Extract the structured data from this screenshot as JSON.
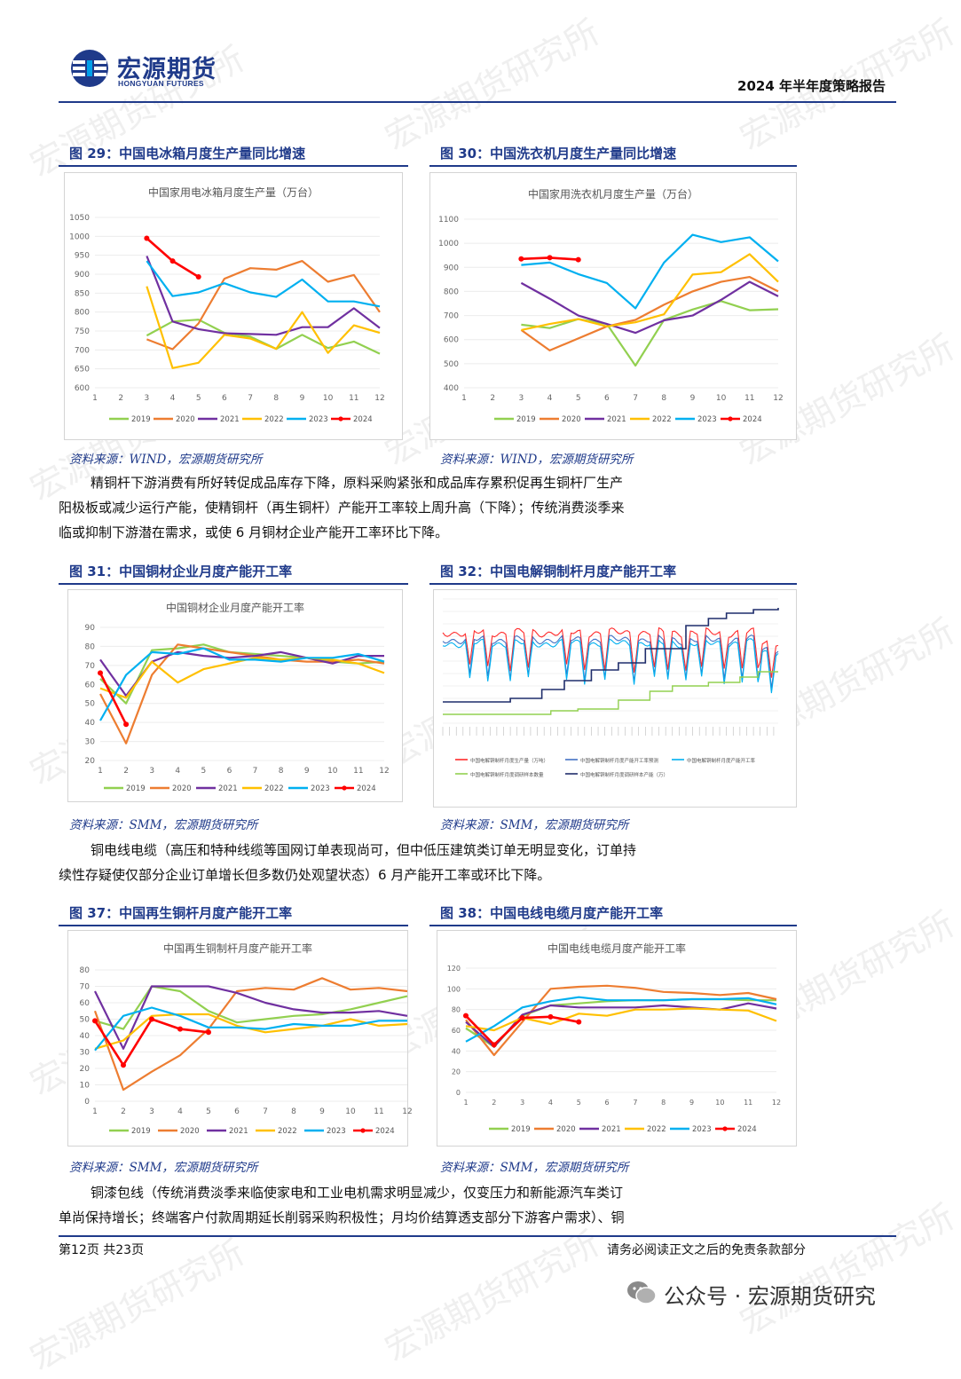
{
  "header": {
    "logo_cn": "宏源期货",
    "logo_en": "HONGYUAN FUTURES",
    "report_title": "2024 年半年度策略报告"
  },
  "watermark": "宏源期货研究所",
  "legend_years": [
    "2019",
    "2020",
    "2021",
    "2022",
    "2023",
    "2024"
  ],
  "colors": {
    "2019": "#92d050",
    "2020": "#ed7d31",
    "2021": "#7030a0",
    "2022": "#ffc000",
    "2023": "#00b0f0",
    "2024": "#ff0000",
    "brand": "#1f3a8a"
  },
  "figures": {
    "f29": {
      "title": "图 29：中国电冰箱月度生产量同比增速",
      "source": "资料来源：WIND，宏源期货研究所"
    },
    "f30": {
      "title": "图 30：中国洗衣机月度生产量同比增速",
      "source": "资料来源：WIND，宏源期货研究所"
    },
    "f31": {
      "title": "图 31：中国铜材企业月度产能开工率",
      "source": "资料来源：SMM，宏源期货研究所"
    },
    "f32": {
      "title": "图 32：中国电解铜制杆月度产能开工率",
      "source": "资料来源：SMM，宏源期货研究所"
    },
    "f37": {
      "title": "图 37：中国再生铜杆月度产能开工率",
      "source": "资料来源：SMM，宏源期货研究所"
    },
    "f38": {
      "title": "图 38：中国电线电缆月度产能开工率",
      "source": "资料来源：SMM，宏源期货研究所"
    }
  },
  "paragraphs": {
    "p1": [
      "精铜杆下游消费有所好转促成品库存下降，原料采购紧张和成品库存累积促再生铜杆厂生产",
      "阳极板或减少运行产能，使精铜杆（再生铜杆）产能开工率较上周升高（下降）；传统消费淡季来",
      "临或抑制下游潜在需求，或使 6 月铜材企业产能开工率环比下降。"
    ],
    "p2": [
      "铜电线电缆（高压和特种线缆等国网订单表现尚可，但中低压建筑类订单无明显变化，订单持",
      "续性存疑使仅部分企业订单增长但多数仍处观望状态）6 月产能开工率或环比下降。"
    ],
    "p3": [
      "铜漆包线（传统消费淡季来临使家电和工业电机需求明显减少，仅变压力和新能源汽车类订",
      "单尚保持增长；终端客户付款周期延长削弱采购积极性；月均价结算透支部分下游客户需求）、铜"
    ]
  },
  "footer": {
    "page": "第12页 共23页",
    "disclaimer": "请务必阅读正文之后的免责条款部分",
    "wechat": "公众号 · 宏源期货研究"
  },
  "chart_data": [
    {
      "id": "f29",
      "type": "line",
      "title": "中国家用电冰箱月度生产量（万台）",
      "x": [
        1,
        2,
        3,
        4,
        5,
        6,
        7,
        8,
        9,
        10,
        11,
        12
      ],
      "ylim": [
        600,
        1050
      ],
      "yticks": [
        600,
        650,
        700,
        750,
        800,
        850,
        900,
        950,
        1000,
        1050
      ],
      "series": [
        {
          "name": "2019",
          "values": [
            null,
            null,
            738,
            775,
            780,
            745,
            735,
            703,
            740,
            705,
            722,
            690
          ]
        },
        {
          "name": "2020",
          "values": [
            null,
            null,
            728,
            702,
            770,
            888,
            916,
            912,
            935,
            880,
            898,
            800
          ]
        },
        {
          "name": "2021",
          "values": [
            null,
            null,
            948,
            775,
            755,
            744,
            742,
            740,
            760,
            760,
            810,
            758
          ]
        },
        {
          "name": "2022",
          "values": [
            null,
            null,
            868,
            652,
            666,
            740,
            730,
            703,
            800,
            692,
            765,
            745
          ]
        },
        {
          "name": "2023",
          "values": [
            null,
            null,
            935,
            842,
            852,
            876,
            852,
            840,
            886,
            828,
            828,
            815
          ]
        },
        {
          "name": "2024",
          "values": [
            null,
            null,
            995,
            935,
            893,
            null,
            null,
            null,
            null,
            null,
            null,
            null
          ]
        }
      ]
    },
    {
      "id": "f30",
      "type": "line",
      "title": "中国家用洗衣机月度生产量（万台）",
      "x": [
        1,
        2,
        3,
        4,
        5,
        6,
        7,
        8,
        9,
        10,
        11,
        12
      ],
      "ylim": [
        400,
        1100
      ],
      "yticks": [
        400,
        500,
        600,
        700,
        800,
        900,
        1000,
        1100
      ],
      "series": [
        {
          "name": "2019",
          "values": [
            null,
            null,
            662,
            648,
            685,
            665,
            492,
            682,
            725,
            760,
            722,
            726
          ]
        },
        {
          "name": "2020",
          "values": [
            null,
            null,
            640,
            555,
            605,
            655,
            682,
            745,
            800,
            840,
            860,
            800
          ]
        },
        {
          "name": "2021",
          "values": [
            null,
            null,
            835,
            770,
            700,
            665,
            628,
            680,
            700,
            765,
            840,
            780
          ]
        },
        {
          "name": "2022",
          "values": [
            null,
            null,
            640,
            665,
            685,
            655,
            672,
            705,
            870,
            880,
            955,
            840
          ]
        },
        {
          "name": "2023",
          "values": [
            null,
            null,
            910,
            920,
            872,
            835,
            730,
            920,
            1035,
            1005,
            1025,
            925
          ]
        },
        {
          "name": "2024",
          "values": [
            null,
            null,
            935,
            940,
            932,
            null,
            null,
            null,
            null,
            null,
            null,
            null
          ]
        }
      ]
    },
    {
      "id": "f31",
      "type": "line",
      "title": "中国铜材企业月度产能开工率",
      "x": [
        1,
        2,
        3,
        4,
        5,
        6,
        7,
        8,
        9,
        10,
        11,
        12
      ],
      "ylim": [
        20,
        90
      ],
      "yticks": [
        20,
        30,
        40,
        50,
        60,
        70,
        80,
        90
      ],
      "series": [
        {
          "name": "2019",
          "values": [
            63,
            50,
            78,
            79,
            81,
            77,
            76,
            75,
            74,
            72,
            71,
            72
          ]
        },
        {
          "name": "2020",
          "values": [
            55,
            29,
            65,
            81,
            79,
            77,
            75,
            73,
            72,
            72,
            73,
            71
          ]
        },
        {
          "name": "2021",
          "values": [
            73,
            54,
            72,
            77,
            75,
            74,
            75,
            77,
            74,
            71,
            75,
            75
          ]
        },
        {
          "name": "2022",
          "values": [
            58,
            53,
            72,
            61,
            68,
            71,
            74,
            73,
            74,
            73,
            71,
            66
          ]
        },
        {
          "name": "2023",
          "values": [
            41,
            65,
            77,
            76,
            79,
            73,
            73,
            72,
            74,
            74,
            76,
            72
          ]
        },
        {
          "name": "2024",
          "values": [
            66,
            39,
            null,
            null,
            null,
            null,
            null,
            null,
            null,
            null,
            null,
            null
          ]
        }
      ]
    },
    {
      "id": "f32",
      "type": "line",
      "title": "",
      "series_labels": [
        "中国电解铜制杆月度生产量（万吨）",
        "中国电解铜制杆月度产能开工率预测",
        "中国电解铜制杆月度产能开工率",
        "中国电解铜制杆月度调研样本数量",
        "中国电解铜制杆月度调研样本产能（万）"
      ]
    },
    {
      "id": "f37",
      "type": "line",
      "title": "中国再生铜制杆月度产能开工率",
      "x": [
        1,
        2,
        3,
        4,
        5,
        6,
        7,
        8,
        9,
        10,
        11,
        12
      ],
      "ylim": [
        0,
        80
      ],
      "yticks": [
        0,
        10,
        20,
        30,
        40,
        50,
        60,
        70,
        80
      ],
      "series": [
        {
          "name": "2019",
          "values": [
            49,
            44,
            70,
            67,
            55,
            48,
            50,
            52,
            53,
            56,
            60,
            64
          ]
        },
        {
          "name": "2020",
          "values": [
            55,
            7,
            18,
            28,
            44,
            67,
            69,
            68,
            75,
            68,
            69,
            67
          ]
        },
        {
          "name": "2021",
          "values": [
            67,
            32,
            70,
            70,
            70,
            66,
            60,
            56,
            54,
            54,
            55,
            52
          ]
        },
        {
          "name": "2022",
          "values": [
            32,
            37,
            52,
            53,
            53,
            46,
            42,
            44,
            46,
            50,
            46,
            47
          ]
        },
        {
          "name": "2023",
          "values": [
            31,
            52,
            57,
            52,
            45,
            45,
            44,
            47,
            46,
            46,
            49,
            49
          ]
        },
        {
          "name": "2024",
          "values": [
            49,
            22,
            50,
            44,
            42,
            null,
            null,
            null,
            null,
            null,
            null,
            null
          ]
        }
      ]
    },
    {
      "id": "f38",
      "type": "line",
      "title": "中国电线电缆月度产能开工率",
      "x": [
        1,
        2,
        3,
        4,
        5,
        6,
        7,
        8,
        9,
        10,
        11,
        12
      ],
      "ylim": [
        0,
        120
      ],
      "yticks": [
        0,
        20,
        40,
        60,
        80,
        100,
        120
      ],
      "series": [
        {
          "name": "2019",
          "values": [
            62,
            44,
            74,
            84,
            86,
            88,
            89,
            89,
            90,
            90,
            89,
            89
          ]
        },
        {
          "name": "2020",
          "values": [
            70,
            36,
            68,
            100,
            102,
            103,
            101,
            97,
            96,
            94,
            96,
            90
          ]
        },
        {
          "name": "2021",
          "values": [
            68,
            44,
            75,
            84,
            82,
            82,
            82,
            84,
            82,
            80,
            86,
            81
          ]
        },
        {
          "name": "2022",
          "values": [
            64,
            60,
            72,
            66,
            76,
            74,
            80,
            80,
            81,
            80,
            79,
            69
          ]
        },
        {
          "name": "2023",
          "values": [
            49,
            64,
            82,
            88,
            92,
            89,
            89,
            89,
            90,
            90,
            91,
            85
          ]
        },
        {
          "name": "2024",
          "values": [
            74,
            46,
            72,
            73,
            68,
            null,
            null,
            null,
            null,
            null,
            null,
            null
          ]
        }
      ]
    }
  ]
}
